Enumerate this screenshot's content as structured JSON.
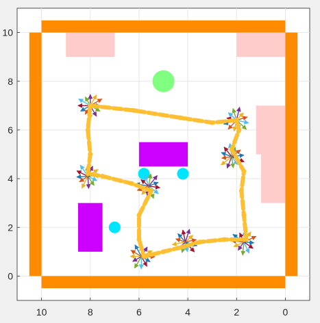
{
  "chart_data": {
    "type": "scatter",
    "title": "",
    "xlabel": "",
    "ylabel": "",
    "xlim": [
      11,
      -1
    ],
    "ylim": [
      -1,
      11
    ],
    "x_reversed": true,
    "grid": true,
    "xticks": [
      10,
      8,
      6,
      4,
      2,
      0
    ],
    "xtick_labels": [
      "10",
      "8",
      "6",
      "4",
      "2",
      "0"
    ],
    "yticks": [
      0,
      2,
      4,
      6,
      8,
      10
    ],
    "ytick_labels": [
      "0",
      "2",
      "4",
      "6",
      "8",
      "10"
    ],
    "colors": {
      "wall": "#ff8c00",
      "pink_zone": "#ffcccc",
      "obstacle": "#cc00ff",
      "goal": "#80ff80",
      "cyan_marker": "#00e5ff",
      "path": "#ffbf33",
      "plot_bg": "#ffffff",
      "grid": "#e5e5e5"
    },
    "walls": [
      {
        "x1": 10,
        "y1": 10.25,
        "x2": 0,
        "y2": 10.25
      },
      {
        "x1": 10,
        "y1": -0.25,
        "x2": 0,
        "y2": -0.25
      },
      {
        "x1": 10.25,
        "y1": 10,
        "x2": 10.25,
        "y2": 0
      },
      {
        "x1": -0.25,
        "y1": 10,
        "x2": -0.25,
        "y2": 0
      }
    ],
    "wall_thickness": 0.5,
    "pink_zones": [
      {
        "x0": 9.0,
        "x1": 7.0,
        "y0": 9.0,
        "y1": 10.0
      },
      {
        "x0": 2.0,
        "x1": 0.0,
        "y0": 9.0,
        "y1": 10.0
      },
      {
        "x0": 1.2,
        "x1": 0.0,
        "y0": 5.0,
        "y1": 7.0
      },
      {
        "x0": 1.0,
        "x1": 0.0,
        "y0": 3.0,
        "y1": 5.0
      }
    ],
    "obstacles": [
      {
        "x0": 6.0,
        "x1": 4.0,
        "y0": 4.5,
        "y1": 5.5
      },
      {
        "x0": 8.5,
        "x1": 7.5,
        "y0": 1.0,
        "y1": 3.0
      }
    ],
    "goal": {
      "x": 5.0,
      "y": 8.0,
      "r": 0.45
    },
    "cyan_markers": [
      {
        "x": 5.8,
        "y": 4.2
      },
      {
        "x": 4.2,
        "y": 4.2
      },
      {
        "x": 7.0,
        "y": 2.0
      }
    ],
    "paths": [
      [
        [
          8.0,
          7.0
        ],
        [
          6.2,
          6.8
        ],
        [
          4.3,
          6.5
        ],
        [
          3.0,
          6.3
        ],
        [
          2.0,
          6.4
        ],
        [
          1.9,
          6.0
        ],
        [
          2.2,
          5.2
        ],
        [
          1.7,
          4.3
        ],
        [
          1.8,
          3.5
        ],
        [
          1.7,
          2.5
        ],
        [
          1.6,
          1.5
        ],
        [
          2.5,
          1.5
        ],
        [
          3.5,
          1.4
        ],
        [
          4.2,
          1.2
        ],
        [
          5.0,
          1.0
        ],
        [
          5.8,
          0.8
        ],
        [
          6.0,
          1.5
        ],
        [
          6.0,
          2.5
        ],
        [
          5.5,
          3.5
        ],
        [
          6.3,
          3.8
        ],
        [
          7.5,
          4.1
        ],
        [
          8.1,
          4.2
        ],
        [
          8.0,
          5.0
        ],
        [
          8.1,
          6.0
        ],
        [
          8.0,
          7.0
        ]
      ]
    ],
    "arrow_clusters": [
      {
        "x": 8.0,
        "y": 7.0
      },
      {
        "x": 2.0,
        "y": 6.4
      },
      {
        "x": 8.1,
        "y": 4.1
      },
      {
        "x": 5.6,
        "y": 3.7
      },
      {
        "x": 2.2,
        "y": 4.9
      },
      {
        "x": 1.7,
        "y": 1.4
      },
      {
        "x": 4.1,
        "y": 1.4
      },
      {
        "x": 5.9,
        "y": 0.8
      }
    ]
  }
}
